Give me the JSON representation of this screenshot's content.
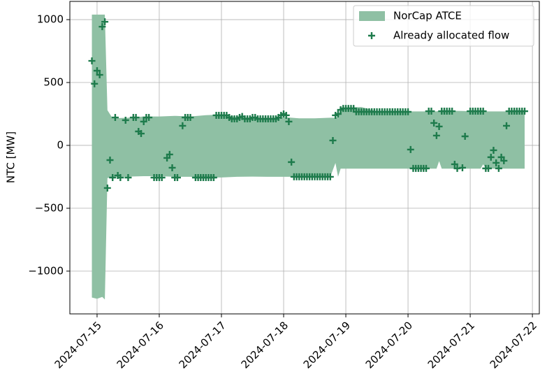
{
  "chart_data": {
    "type": "area",
    "ylabel": "NTC [MW]",
    "xlim": [
      "2024-07-14T13:30",
      "2024-07-22T02:40"
    ],
    "xticks": [
      "2024-07-15",
      "2024-07-16",
      "2024-07-17",
      "2024-07-18",
      "2024-07-19",
      "2024-07-20",
      "2024-07-21",
      "2024-07-22"
    ],
    "ylim": [
      -1340,
      1145
    ],
    "yticks": [
      {
        "value": -1000,
        "label": "−1000"
      },
      {
        "value": -500,
        "label": "−500"
      },
      0,
      500,
      1000
    ],
    "grid": true,
    "legend": "upper right",
    "series": [
      {
        "name": "NorCap ATCE",
        "type": "area",
        "color": "#8fc0a4",
        "x": [
          "2024-07-14T22:00",
          "2024-07-15T00:00",
          "2024-07-15T02:00",
          "2024-07-15T03:00",
          "2024-07-15T04:00",
          "2024-07-15T06:00",
          "2024-07-15T12:00",
          "2024-07-15T18:00",
          "2024-07-16T00:00",
          "2024-07-16T06:00",
          "2024-07-16T12:00",
          "2024-07-16T18:00",
          "2024-07-17T00:00",
          "2024-07-17T06:00",
          "2024-07-17T12:00",
          "2024-07-17T18:00",
          "2024-07-18T00:00",
          "2024-07-18T06:00",
          "2024-07-18T12:00",
          "2024-07-18T18:00",
          "2024-07-18T20:00",
          "2024-07-18T21:00",
          "2024-07-18T22:00",
          "2024-07-19T06:00",
          "2024-07-19T12:00",
          "2024-07-20T00:00",
          "2024-07-20T06:00",
          "2024-07-20T11:00",
          "2024-07-20T12:00",
          "2024-07-20T13:00",
          "2024-07-20T18:00",
          "2024-07-21T04:00",
          "2024-07-21T05:00",
          "2024-07-21T06:00",
          "2024-07-21T21:00"
        ],
        "upper": [
          1040,
          1040,
          1040,
          1040,
          280,
          215,
          220,
          230,
          230,
          235,
          230,
          240,
          245,
          225,
          220,
          215,
          225,
          215,
          215,
          220,
          220,
          225,
          300,
          305,
          270,
          270,
          270,
          270,
          275,
          275,
          275,
          270,
          270,
          270,
          270
        ],
        "lower": [
          -1210,
          -1220,
          -1205,
          -1225,
          -260,
          -250,
          -248,
          -245,
          -245,
          -250,
          -250,
          -255,
          -255,
          -250,
          -248,
          -250,
          -250,
          -250,
          -250,
          -250,
          -140,
          -250,
          -185,
          -185,
          -185,
          -185,
          -185,
          -185,
          -125,
          -185,
          -185,
          -185,
          -150,
          -185,
          -185
        ]
      },
      {
        "name": "Already allocated flow",
        "type": "scatter",
        "color": "#1e7b4c",
        "x": [
          "2024-07-14T22:00",
          "2024-07-14T23:00",
          "2024-07-15T00:00",
          "2024-07-15T01:00",
          "2024-07-15T02:00",
          "2024-07-15T03:00",
          "2024-07-15T04:00",
          "2024-07-15T05:00",
          "2024-07-15T06:00",
          "2024-07-15T07:00",
          "2024-07-15T08:00",
          "2024-07-15T09:00",
          "2024-07-15T11:00",
          "2024-07-15T12:00",
          "2024-07-15T14:00",
          "2024-07-15T15:00",
          "2024-07-15T16:00",
          "2024-07-15T17:00",
          "2024-07-15T18:00",
          "2024-07-15T19:00",
          "2024-07-15T20:00",
          "2024-07-15T22:00",
          "2024-07-15T23:00",
          "2024-07-16T00:00",
          "2024-07-16T01:00",
          "2024-07-16T03:00",
          "2024-07-16T04:00",
          "2024-07-16T05:00",
          "2024-07-16T06:00",
          "2024-07-16T07:00",
          "2024-07-16T09:00",
          "2024-07-16T10:00",
          "2024-07-16T11:00",
          "2024-07-16T12:00",
          "2024-07-16T14:00",
          "2024-07-16T15:00",
          "2024-07-16T16:00",
          "2024-07-16T17:00",
          "2024-07-16T18:00",
          "2024-07-16T19:00",
          "2024-07-16T20:00",
          "2024-07-16T21:00",
          "2024-07-16T22:00",
          "2024-07-16T23:00",
          "2024-07-17T00:00",
          "2024-07-17T01:00",
          "2024-07-17T02:00",
          "2024-07-17T03:00",
          "2024-07-17T04:00",
          "2024-07-17T05:00",
          "2024-07-17T06:00",
          "2024-07-17T07:00",
          "2024-07-17T08:00",
          "2024-07-17T09:00",
          "2024-07-17T10:00",
          "2024-07-17T11:00",
          "2024-07-17T12:00",
          "2024-07-17T13:00",
          "2024-07-17T14:00",
          "2024-07-17T15:00",
          "2024-07-17T16:00",
          "2024-07-17T17:00",
          "2024-07-17T18:00",
          "2024-07-17T19:00",
          "2024-07-17T20:00",
          "2024-07-17T21:00",
          "2024-07-17T22:00",
          "2024-07-17T23:00",
          "2024-07-18T00:00",
          "2024-07-18T01:00",
          "2024-07-18T02:00",
          "2024-07-18T03:00",
          "2024-07-18T04:00",
          "2024-07-18T05:00",
          "2024-07-18T06:00",
          "2024-07-18T07:00",
          "2024-07-18T08:00",
          "2024-07-18T09:00",
          "2024-07-18T10:00",
          "2024-07-18T11:00",
          "2024-07-18T12:00",
          "2024-07-18T13:00",
          "2024-07-18T14:00",
          "2024-07-18T15:00",
          "2024-07-18T16:00",
          "2024-07-18T17:00",
          "2024-07-18T18:00",
          "2024-07-18T19:00",
          "2024-07-18T20:00",
          "2024-07-18T21:00",
          "2024-07-18T22:00",
          "2024-07-18T23:00",
          "2024-07-19T00:00",
          "2024-07-19T01:00",
          "2024-07-19T02:00",
          "2024-07-19T03:00",
          "2024-07-19T04:00",
          "2024-07-19T05:00",
          "2024-07-19T06:00",
          "2024-07-19T07:00",
          "2024-07-19T08:00",
          "2024-07-19T09:00",
          "2024-07-19T10:00",
          "2024-07-19T11:00",
          "2024-07-19T12:00",
          "2024-07-19T13:00",
          "2024-07-19T14:00",
          "2024-07-19T15:00",
          "2024-07-19T16:00",
          "2024-07-19T17:00",
          "2024-07-19T18:00",
          "2024-07-19T19:00",
          "2024-07-19T20:00",
          "2024-07-19T21:00",
          "2024-07-19T22:00",
          "2024-07-19T23:00",
          "2024-07-20T00:00",
          "2024-07-20T01:00",
          "2024-07-20T02:00",
          "2024-07-20T03:00",
          "2024-07-20T04:00",
          "2024-07-20T05:00",
          "2024-07-20T06:00",
          "2024-07-20T07:00",
          "2024-07-20T08:00",
          "2024-07-20T09:00",
          "2024-07-20T10:00",
          "2024-07-20T11:00",
          "2024-07-20T12:00",
          "2024-07-20T13:00",
          "2024-07-20T14:00",
          "2024-07-20T15:00",
          "2024-07-20T16:00",
          "2024-07-20T17:00",
          "2024-07-20T18:00",
          "2024-07-20T19:00",
          "2024-07-20T21:00",
          "2024-07-20T22:00",
          "2024-07-21T00:00",
          "2024-07-21T01:00",
          "2024-07-21T02:00",
          "2024-07-21T03:00",
          "2024-07-21T04:00",
          "2024-07-21T05:00",
          "2024-07-21T06:00",
          "2024-07-21T07:00",
          "2024-07-21T08:00",
          "2024-07-21T09:00",
          "2024-07-21T10:00",
          "2024-07-21T11:00",
          "2024-07-21T12:00",
          "2024-07-21T13:00",
          "2024-07-21T14:00",
          "2024-07-21T15:00",
          "2024-07-21T16:00",
          "2024-07-21T17:00",
          "2024-07-21T18:00",
          "2024-07-21T19:00",
          "2024-07-21T20:00",
          "2024-07-21T21:00"
        ],
        "values": [
          672,
          490,
          594,
          561,
          944,
          983,
          -339,
          -117,
          -256,
          222,
          -239,
          -256,
          200,
          -256,
          222,
          222,
          111,
          94,
          189,
          222,
          222,
          -256,
          -256,
          -256,
          -256,
          -100,
          -72,
          -178,
          -256,
          -256,
          156,
          222,
          222,
          222,
          -256,
          -256,
          -256,
          -256,
          -256,
          -256,
          -256,
          -256,
          239,
          239,
          239,
          239,
          239,
          222,
          211,
          211,
          211,
          222,
          230,
          211,
          211,
          211,
          222,
          222,
          211,
          211,
          211,
          211,
          211,
          211,
          211,
          211,
          222,
          239,
          250,
          239,
          189,
          -133,
          -250,
          -250,
          -250,
          -250,
          -250,
          -250,
          -250,
          -250,
          -250,
          -250,
          -250,
          -250,
          -250,
          -250,
          -250,
          39,
          239,
          250,
          283,
          294,
          294,
          294,
          294,
          294,
          267,
          267,
          267,
          267,
          267,
          267,
          267,
          267,
          267,
          267,
          267,
          267,
          267,
          267,
          267,
          267,
          267,
          267,
          267,
          267,
          267,
          -33,
          -183,
          -183,
          -183,
          -183,
          -183,
          -183,
          272,
          272,
          178,
          78,
          150,
          272,
          272,
          272,
          272,
          272,
          -150,
          -183,
          -178,
          72,
          272,
          272,
          272,
          272,
          272,
          272,
          -183,
          -183,
          -94,
          -39,
          -139,
          -183,
          -94,
          -122,
          156,
          272,
          272,
          272,
          272,
          272,
          272,
          272
        ]
      }
    ]
  }
}
